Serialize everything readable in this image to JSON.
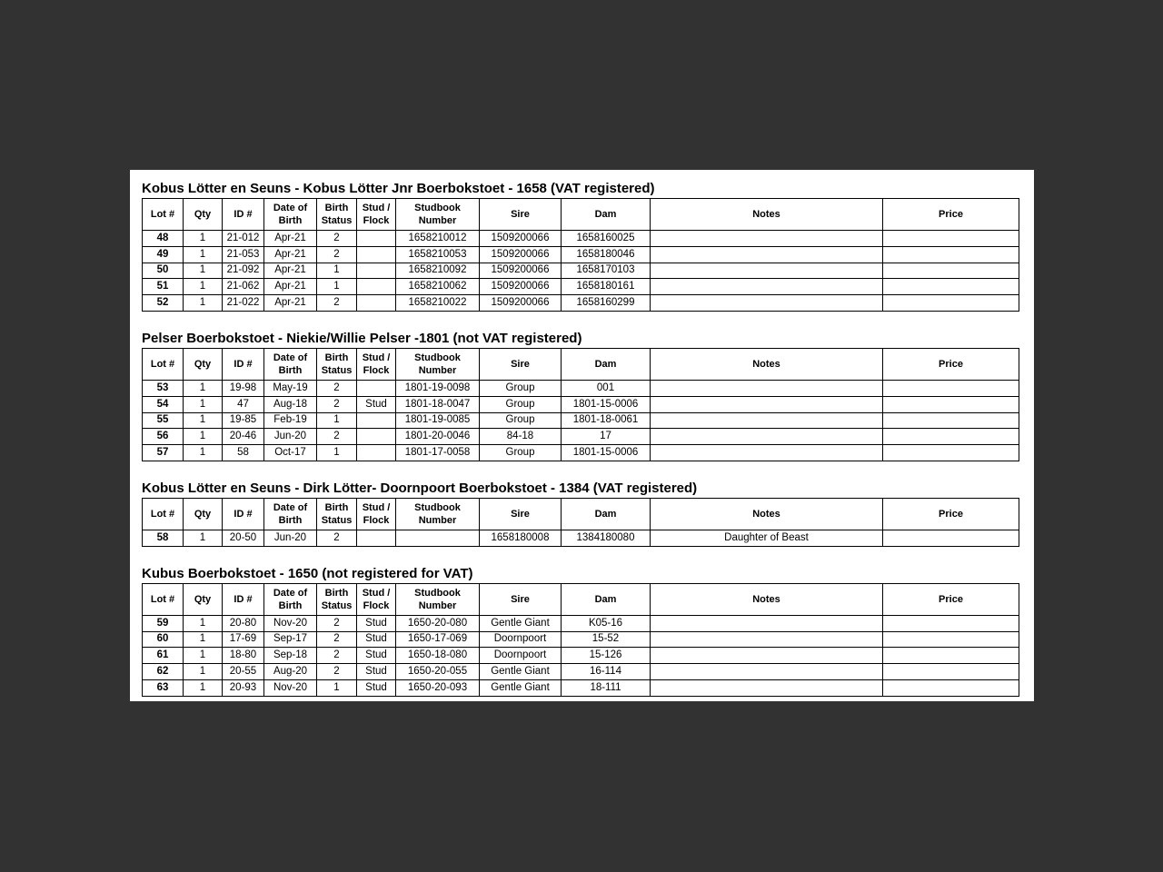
{
  "document": {
    "background_color": "#323232",
    "page_color": "#ffffff"
  },
  "columns": [
    "Lot #",
    "Qty",
    "ID #",
    "Date of\nBirth",
    "Birth\nStatus",
    "Stud /\nFlock",
    "Studbook\nNumber",
    "Sire",
    "Dam",
    "Notes",
    "Price"
  ],
  "sections": [
    {
      "title": "Kobus Lötter en Seuns - Kobus Lötter Jnr Boerbokstoet - 1658 (VAT registered)",
      "rows": [
        [
          "48",
          "1",
          "21-012",
          "Apr-21",
          "2",
          "",
          "1658210012",
          "1509200066",
          "1658160025",
          "",
          ""
        ],
        [
          "49",
          "1",
          "21-053",
          "Apr-21",
          "2",
          "",
          "1658210053",
          "1509200066",
          "1658180046",
          "",
          ""
        ],
        [
          "50",
          "1",
          "21-092",
          "Apr-21",
          "1",
          "",
          "1658210092",
          "1509200066",
          "1658170103",
          "",
          ""
        ],
        [
          "51",
          "1",
          "21-062",
          "Apr-21",
          "1",
          "",
          "1658210062",
          "1509200066",
          "1658180161",
          "",
          ""
        ],
        [
          "52",
          "1",
          "21-022",
          "Apr-21",
          "2",
          "",
          "1658210022",
          "1509200066",
          "1658160299",
          "",
          ""
        ]
      ]
    },
    {
      "title": "Pelser Boerbokstoet - Niekie/Willie Pelser -1801 (not VAT registered)",
      "rows": [
        [
          "53",
          "1",
          "19-98",
          "May-19",
          "2",
          "",
          "1801-19-0098",
          "Group",
          "001",
          "",
          ""
        ],
        [
          "54",
          "1",
          "47",
          "Aug-18",
          "2",
          "Stud",
          "1801-18-0047",
          "Group",
          "1801-15-0006",
          "",
          ""
        ],
        [
          "55",
          "1",
          "19-85",
          "Feb-19",
          "1",
          "",
          "1801-19-0085",
          "Group",
          "1801-18-0061",
          "",
          ""
        ],
        [
          "56",
          "1",
          "20-46",
          "Jun-20",
          "2",
          "",
          "1801-20-0046",
          "84-18",
          "17",
          "",
          ""
        ],
        [
          "57",
          "1",
          "58",
          "Oct-17",
          "1",
          "",
          "1801-17-0058",
          "Group",
          "1801-15-0006",
          "",
          ""
        ]
      ]
    },
    {
      "title": "Kobus Lötter en Seuns - Dirk Lötter- Doornpoort Boerbokstoet - 1384 (VAT registered)",
      "rows": [
        [
          "58",
          "1",
          "20-50",
          "Jun-20",
          "2",
          "",
          "",
          "1658180008",
          "1384180080",
          "Daughter of Beast",
          ""
        ]
      ]
    },
    {
      "title": "Kubus Boerbokstoet - 1650 (not registered for VAT)",
      "rows": [
        [
          "59",
          "1",
          "20-80",
          "Nov-20",
          "2",
          "Stud",
          "1650-20-080",
          "Gentle Giant",
          "K05-16",
          "",
          ""
        ],
        [
          "60",
          "1",
          "17-69",
          "Sep-17",
          "2",
          "Stud",
          "1650-17-069",
          "Doornpoort",
          "15-52",
          "",
          ""
        ],
        [
          "61",
          "1",
          "18-80",
          "Sep-18",
          "2",
          "Stud",
          "1650-18-080",
          "Doornpoort",
          "15-126",
          "",
          ""
        ],
        [
          "62",
          "1",
          "20-55",
          "Aug-20",
          "2",
          "Stud",
          "1650-20-055",
          "Gentle Giant",
          "16-114",
          "",
          ""
        ],
        [
          "63",
          "1",
          "20-93",
          "Nov-20",
          "1",
          "Stud",
          "1650-20-093",
          "Gentle Giant",
          "18-111",
          "",
          ""
        ]
      ]
    }
  ]
}
